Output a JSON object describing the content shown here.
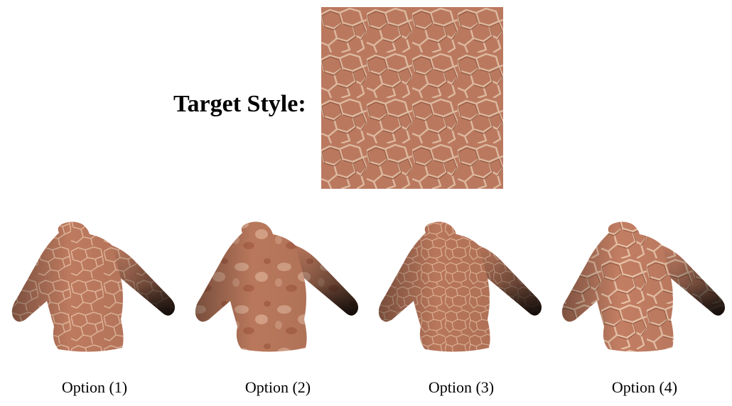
{
  "target": {
    "label": "Target Style:"
  },
  "options": [
    {
      "label": "Option (1)"
    },
    {
      "label": "Option (2)"
    },
    {
      "label": "Option (3)"
    },
    {
      "label": "Option (4)"
    }
  ],
  "colors": {
    "skin_base": "#c27e63",
    "skin_dark": "#9a5a42",
    "skin_light": "#e8c2a8",
    "shadow": "#1a0d08"
  }
}
